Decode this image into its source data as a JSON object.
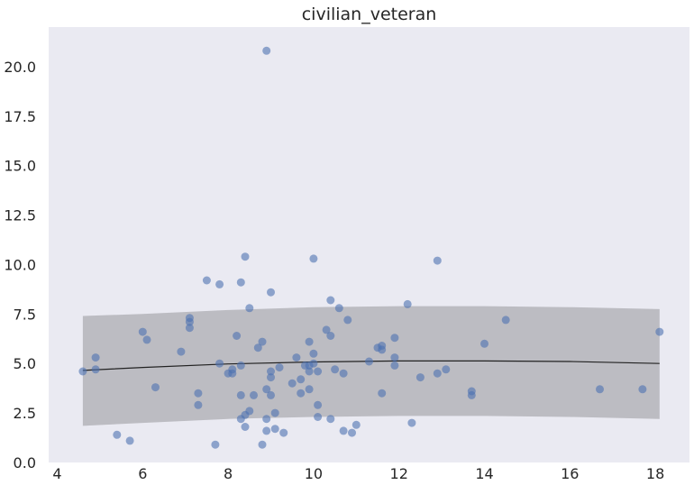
{
  "chart_data": {
    "type": "scatter",
    "title": "civilian_veteran",
    "xlabel": "",
    "ylabel": "",
    "xlim": [
      3.8,
      18.8
    ],
    "ylim": [
      0,
      22
    ],
    "x_ticks": [
      4,
      6,
      8,
      10,
      12,
      14,
      16,
      18
    ],
    "x_tick_labels": [
      "4",
      "6",
      "8",
      "10",
      "12",
      "14",
      "16",
      "18"
    ],
    "y_ticks": [
      0,
      2.5,
      5,
      7.5,
      10,
      12.5,
      15,
      17.5,
      20
    ],
    "y_tick_labels": [
      "0.0",
      "2.5",
      "5.0",
      "7.5",
      "10.0",
      "12.5",
      "15.0",
      "17.5",
      "20.0"
    ],
    "grid": false,
    "background_color": "#eaeaf2",
    "point_color": "#4c72b0",
    "band_color": "#a8a8ae",
    "line_color": "#222222",
    "points": [
      {
        "x": 4.6,
        "y": 4.6
      },
      {
        "x": 4.9,
        "y": 5.3
      },
      {
        "x": 4.9,
        "y": 4.7
      },
      {
        "x": 5.4,
        "y": 1.4
      },
      {
        "x": 5.7,
        "y": 1.1
      },
      {
        "x": 6.0,
        "y": 6.6
      },
      {
        "x": 6.1,
        "y": 6.2
      },
      {
        "x": 6.3,
        "y": 3.8
      },
      {
        "x": 6.9,
        "y": 5.6
      },
      {
        "x": 7.1,
        "y": 7.3
      },
      {
        "x": 7.1,
        "y": 7.1
      },
      {
        "x": 7.1,
        "y": 6.8
      },
      {
        "x": 7.3,
        "y": 3.5
      },
      {
        "x": 7.3,
        "y": 2.9
      },
      {
        "x": 7.5,
        "y": 9.2
      },
      {
        "x": 7.7,
        "y": 0.9
      },
      {
        "x": 7.8,
        "y": 9.0
      },
      {
        "x": 7.8,
        "y": 5.0
      },
      {
        "x": 8.0,
        "y": 4.5
      },
      {
        "x": 8.1,
        "y": 4.7
      },
      {
        "x": 8.1,
        "y": 4.5
      },
      {
        "x": 8.2,
        "y": 6.4
      },
      {
        "x": 8.3,
        "y": 9.1
      },
      {
        "x": 8.3,
        "y": 4.9
      },
      {
        "x": 8.3,
        "y": 3.4
      },
      {
        "x": 8.3,
        "y": 2.2
      },
      {
        "x": 8.4,
        "y": 10.4
      },
      {
        "x": 8.4,
        "y": 2.4
      },
      {
        "x": 8.4,
        "y": 1.8
      },
      {
        "x": 8.5,
        "y": 7.8
      },
      {
        "x": 8.5,
        "y": 2.6
      },
      {
        "x": 8.6,
        "y": 3.4
      },
      {
        "x": 8.7,
        "y": 5.8
      },
      {
        "x": 8.8,
        "y": 6.1
      },
      {
        "x": 8.8,
        "y": 0.9
      },
      {
        "x": 8.9,
        "y": 20.8
      },
      {
        "x": 8.9,
        "y": 3.7
      },
      {
        "x": 8.9,
        "y": 2.2
      },
      {
        "x": 8.9,
        "y": 1.6
      },
      {
        "x": 9.0,
        "y": 8.6
      },
      {
        "x": 9.0,
        "y": 4.6
      },
      {
        "x": 9.0,
        "y": 4.3
      },
      {
        "x": 9.0,
        "y": 3.4
      },
      {
        "x": 9.1,
        "y": 2.5
      },
      {
        "x": 9.1,
        "y": 1.7
      },
      {
        "x": 9.2,
        "y": 4.8
      },
      {
        "x": 9.3,
        "y": 1.5
      },
      {
        "x": 9.5,
        "y": 4.0
      },
      {
        "x": 9.6,
        "y": 5.3
      },
      {
        "x": 9.7,
        "y": 4.2
      },
      {
        "x": 9.7,
        "y": 3.5
      },
      {
        "x": 9.8,
        "y": 4.9
      },
      {
        "x": 9.9,
        "y": 6.1
      },
      {
        "x": 9.9,
        "y": 4.9
      },
      {
        "x": 9.9,
        "y": 4.6
      },
      {
        "x": 9.9,
        "y": 3.7
      },
      {
        "x": 10.0,
        "y": 10.3
      },
      {
        "x": 10.0,
        "y": 5.5
      },
      {
        "x": 10.0,
        "y": 5.0
      },
      {
        "x": 10.1,
        "y": 4.6
      },
      {
        "x": 10.1,
        "y": 2.9
      },
      {
        "x": 10.1,
        "y": 2.3
      },
      {
        "x": 10.3,
        "y": 6.7
      },
      {
        "x": 10.4,
        "y": 8.2
      },
      {
        "x": 10.4,
        "y": 6.4
      },
      {
        "x": 10.4,
        "y": 2.2
      },
      {
        "x": 10.5,
        "y": 4.7
      },
      {
        "x": 10.6,
        "y": 7.8
      },
      {
        "x": 10.7,
        "y": 4.5
      },
      {
        "x": 10.7,
        "y": 1.6
      },
      {
        "x": 10.8,
        "y": 7.2
      },
      {
        "x": 10.9,
        "y": 1.5
      },
      {
        "x": 11.0,
        "y": 1.9
      },
      {
        "x": 11.3,
        "y": 5.1
      },
      {
        "x": 11.5,
        "y": 5.8
      },
      {
        "x": 11.6,
        "y": 5.9
      },
      {
        "x": 11.6,
        "y": 5.7
      },
      {
        "x": 11.6,
        "y": 3.5
      },
      {
        "x": 11.9,
        "y": 6.3
      },
      {
        "x": 11.9,
        "y": 5.3
      },
      {
        "x": 11.9,
        "y": 4.9
      },
      {
        "x": 12.2,
        "y": 8.0
      },
      {
        "x": 12.3,
        "y": 2.0
      },
      {
        "x": 12.5,
        "y": 4.3
      },
      {
        "x": 12.9,
        "y": 10.2
      },
      {
        "x": 12.9,
        "y": 4.5
      },
      {
        "x": 13.1,
        "y": 4.7
      },
      {
        "x": 13.7,
        "y": 3.6
      },
      {
        "x": 13.7,
        "y": 3.4
      },
      {
        "x": 14.0,
        "y": 6.0
      },
      {
        "x": 14.5,
        "y": 7.2
      },
      {
        "x": 16.7,
        "y": 3.7
      },
      {
        "x": 17.7,
        "y": 3.7
      },
      {
        "x": 18.1,
        "y": 6.6
      }
    ],
    "fit_line": {
      "x": [
        4.6,
        6,
        8,
        10,
        12,
        14,
        16,
        18.1
      ],
      "y": [
        4.65,
        4.8,
        4.98,
        5.08,
        5.13,
        5.13,
        5.1,
        5.0
      ]
    },
    "band": {
      "x": [
        4.6,
        6,
        8,
        10,
        12,
        14,
        16,
        18.1
      ],
      "lower": [
        1.85,
        2.0,
        2.2,
        2.3,
        2.35,
        2.35,
        2.3,
        2.2
      ],
      "upper": [
        7.4,
        7.5,
        7.7,
        7.85,
        7.9,
        7.9,
        7.85,
        7.75
      ]
    }
  }
}
